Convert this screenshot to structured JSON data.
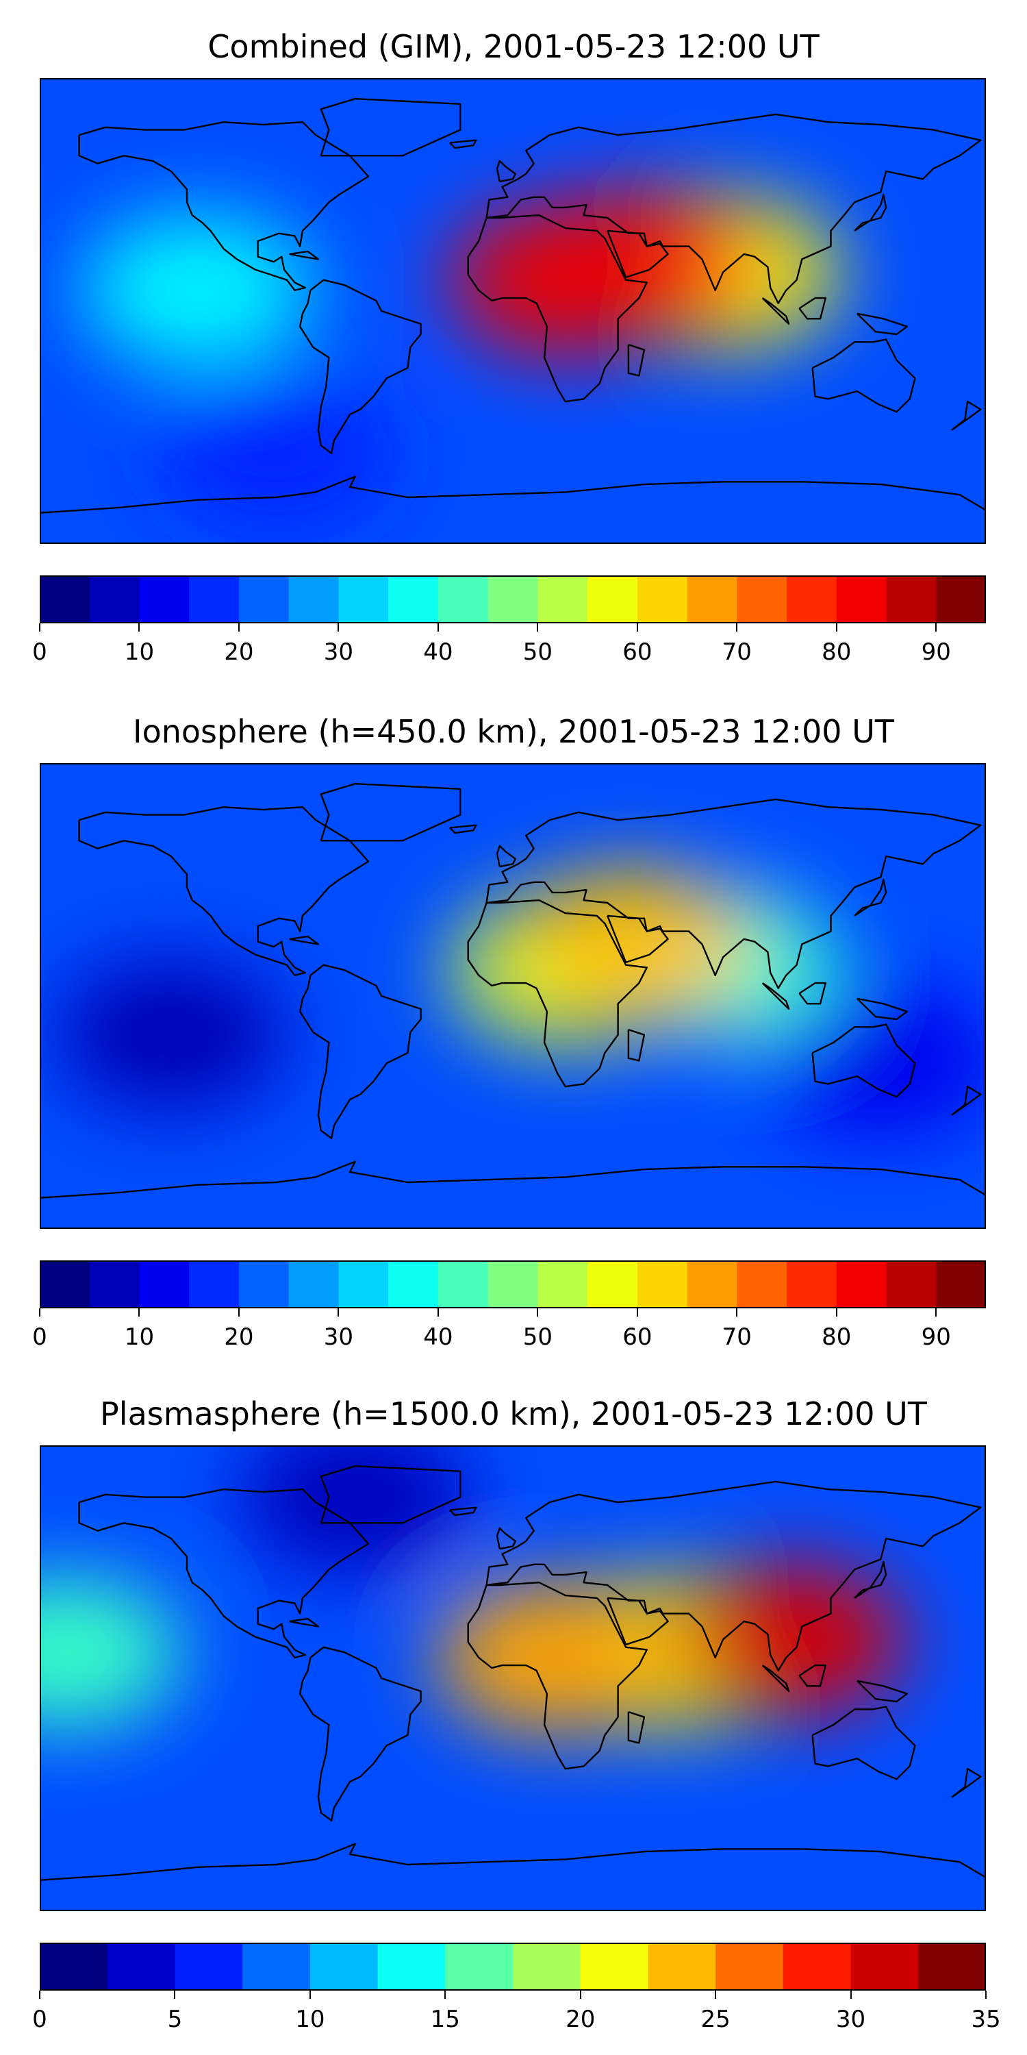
{
  "chart_data": [
    {
      "type": "heatmap",
      "title": "Combined (GIM), 2001-05-23 12:00 UT",
      "xlabel": "",
      "ylabel": "",
      "colorbar": {
        "levels": [
          0,
          5,
          10,
          15,
          20,
          25,
          30,
          35,
          40,
          45,
          50,
          55,
          60,
          65,
          70,
          75,
          80,
          85,
          90,
          95
        ],
        "tick_values": [
          0,
          10,
          20,
          30,
          40,
          50,
          60,
          70,
          80,
          90
        ],
        "tick_labels": [
          "0",
          "10",
          "20",
          "30",
          "40",
          "50",
          "60",
          "70",
          "80",
          "90"
        ],
        "colormap": "jet"
      },
      "field_peaks": [
        {
          "lon": 20,
          "lat": 12,
          "value": 85
        },
        {
          "lon": 50,
          "lat": 18,
          "value": 80
        },
        {
          "lon": 80,
          "lat": 15,
          "value": 60
        },
        {
          "lon": -120,
          "lat": 8,
          "value": 35
        },
        {
          "lon": -90,
          "lat": -55,
          "value": 15
        }
      ]
    },
    {
      "type": "heatmap",
      "title": "Ionosphere  (h=450.0 km), 2001-05-23 12:00 UT",
      "xlabel": "",
      "ylabel": "",
      "colorbar": {
        "levels": [
          0,
          5,
          10,
          15,
          20,
          25,
          30,
          35,
          40,
          45,
          50,
          55,
          60,
          65,
          70,
          75,
          80,
          85,
          90,
          95
        ],
        "tick_values": [
          0,
          10,
          20,
          30,
          40,
          50,
          60,
          70,
          80,
          90
        ],
        "tick_labels": [
          "0",
          "10",
          "20",
          "30",
          "40",
          "50",
          "60",
          "70",
          "80",
          "90"
        ],
        "colormap": "jet"
      },
      "field_peaks": [
        {
          "lon": 45,
          "lat": 20,
          "value": 65
        },
        {
          "lon": 20,
          "lat": 10,
          "value": 55
        },
        {
          "lon": 80,
          "lat": 12,
          "value": 40
        },
        {
          "lon": -130,
          "lat": -15,
          "value": 5
        },
        {
          "lon": 140,
          "lat": -25,
          "value": 10
        }
      ]
    },
    {
      "type": "heatmap",
      "title": "Plasmasphere (h=1500.0 km), 2001-05-23 12:00 UT",
      "xlabel": "",
      "ylabel": "",
      "colorbar": {
        "levels": [
          0,
          2.5,
          5,
          7.5,
          10,
          12.5,
          15,
          17.5,
          20,
          22.5,
          25,
          27.5,
          30,
          32.5,
          35
        ],
        "tick_values": [
          0,
          5,
          10,
          15,
          20,
          25,
          30,
          35
        ],
        "tick_labels": [
          "0",
          "5",
          "10",
          "15",
          "20",
          "25",
          "30",
          "35"
        ],
        "colormap": "jet"
      },
      "field_peaks": [
        {
          "lon": 105,
          "lat": 15,
          "value": 32
        },
        {
          "lon": 15,
          "lat": 8,
          "value": 25
        },
        {
          "lon": 60,
          "lat": 10,
          "value": 22
        },
        {
          "lon": -170,
          "lat": 10,
          "value": 15
        },
        {
          "lon": -60,
          "lat": 70,
          "value": 2
        }
      ]
    }
  ]
}
